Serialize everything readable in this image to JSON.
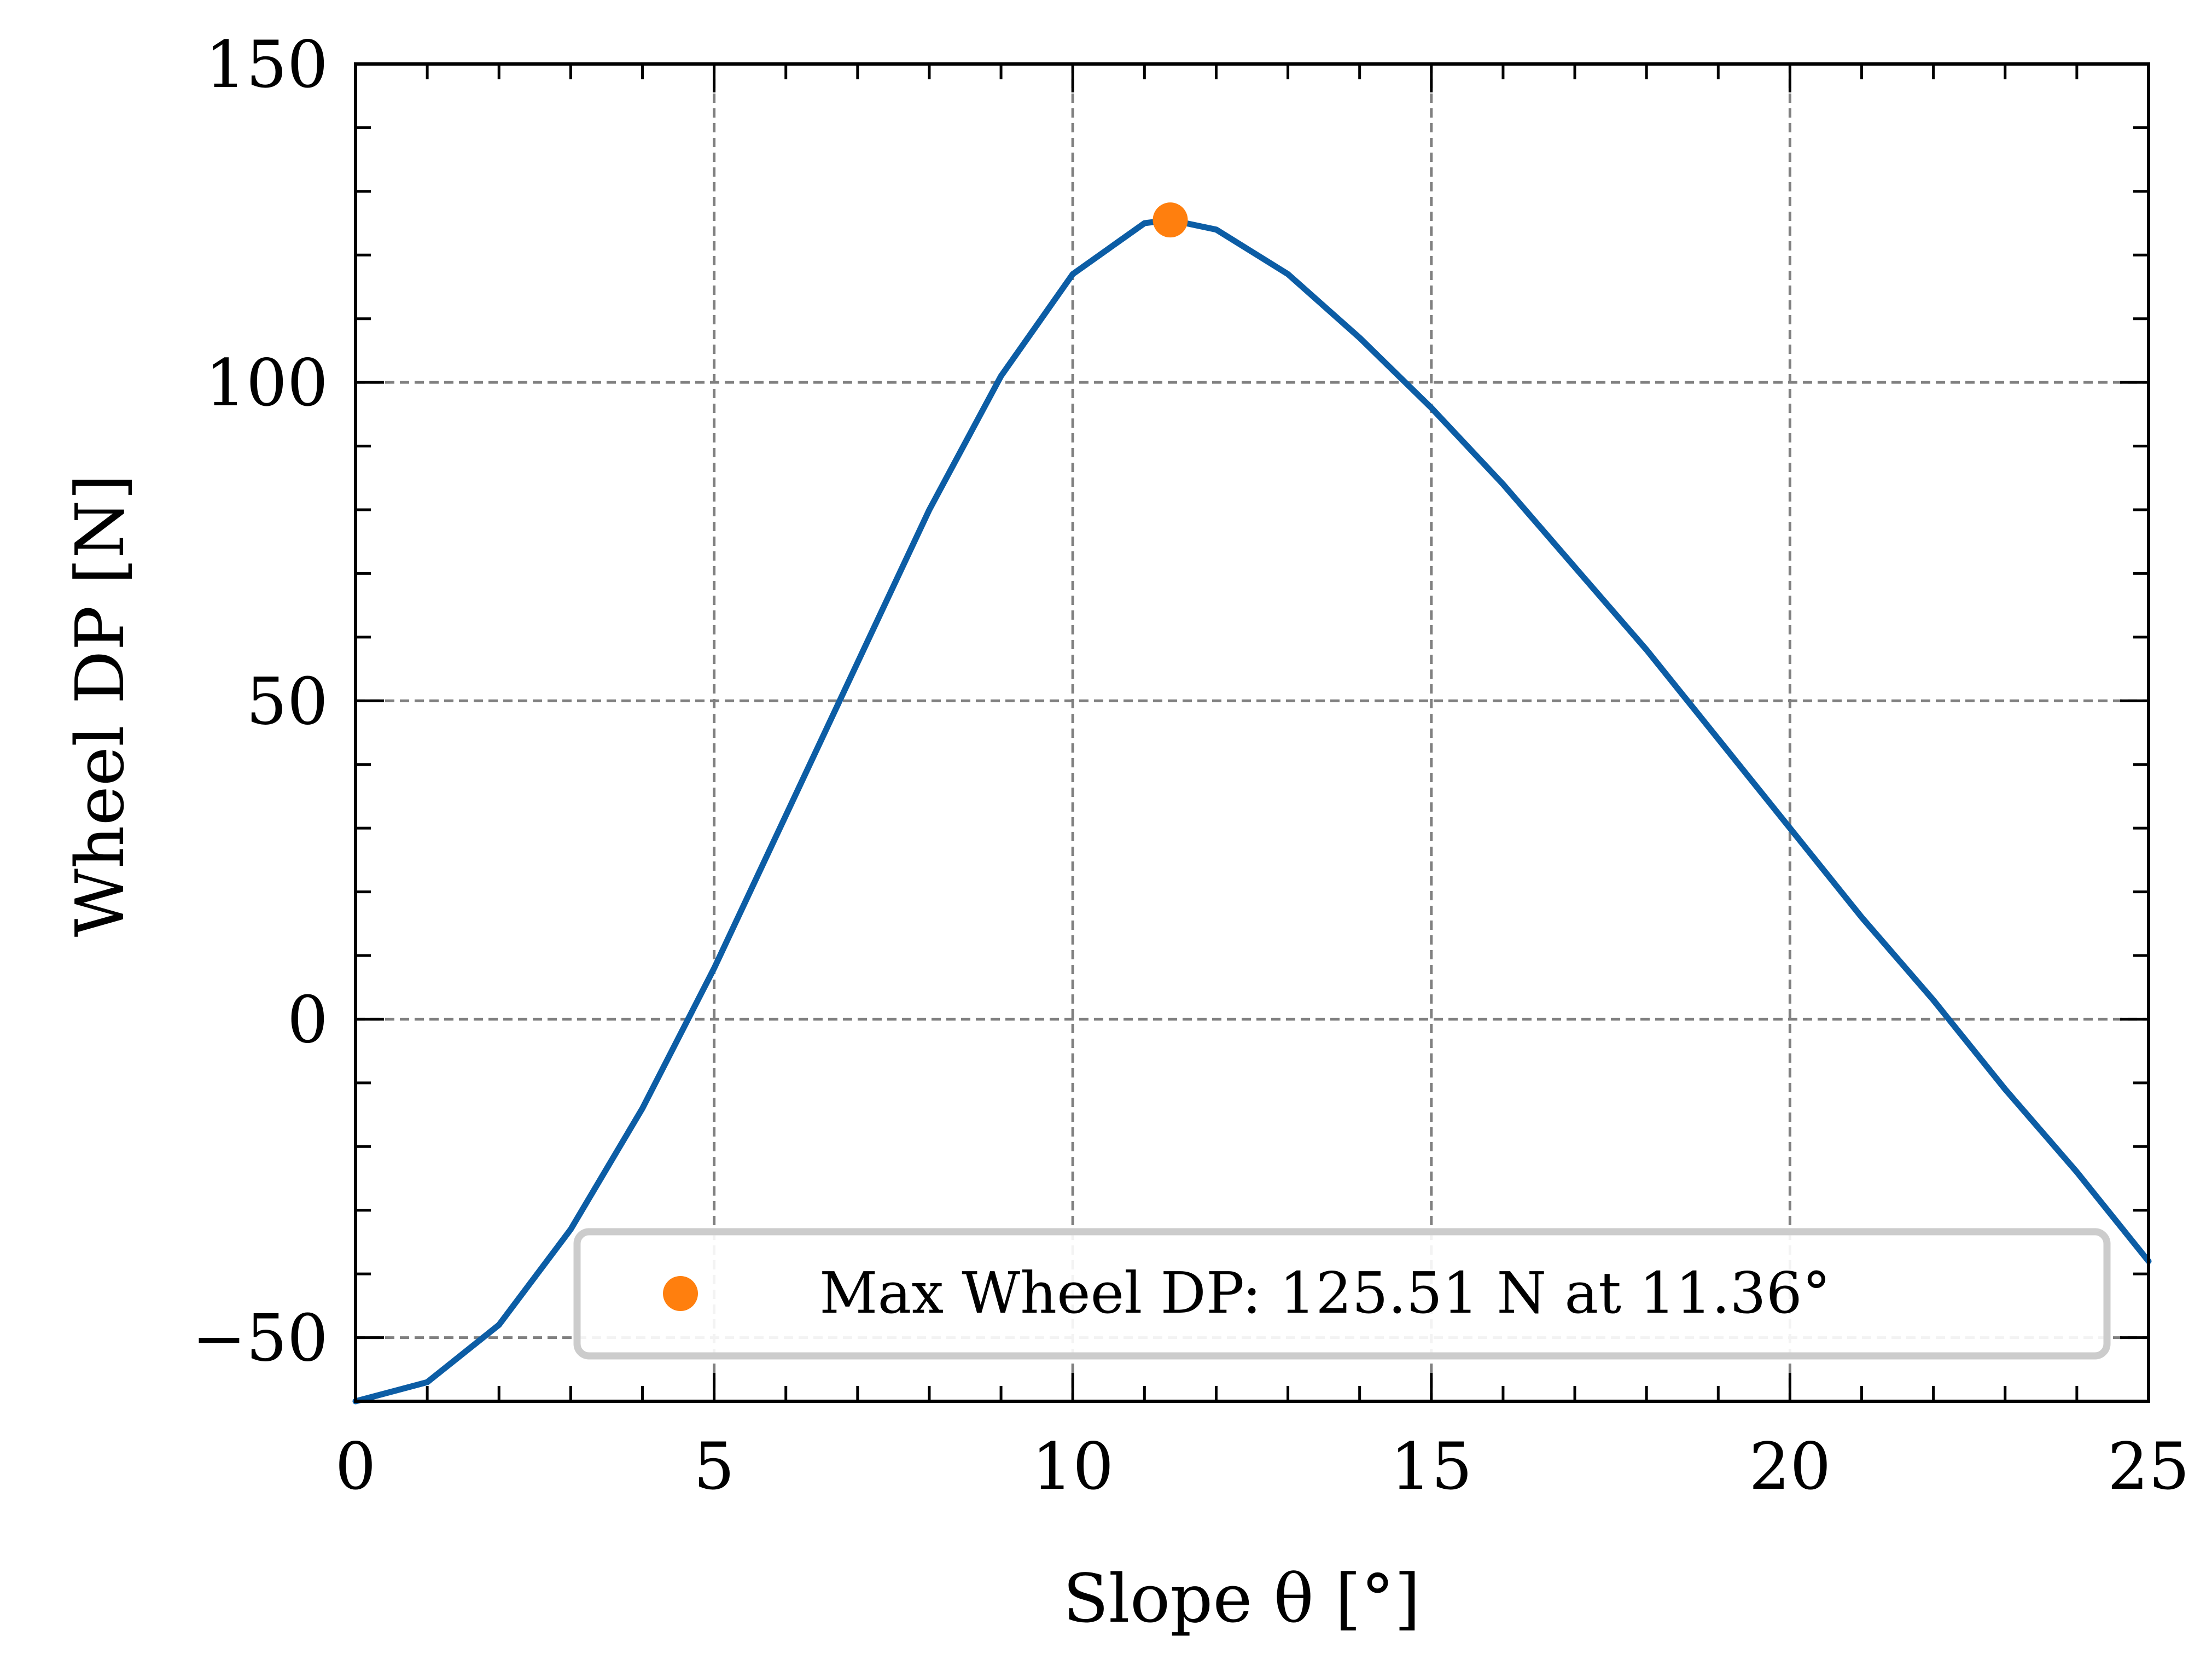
{
  "chart_data": {
    "type": "line",
    "title": "",
    "xlabel": "Slope θ [°]",
    "ylabel": "Wheel DP [N]",
    "xlim": [
      0,
      25
    ],
    "ylim": [
      -60,
      150
    ],
    "x_ticks": [
      "0",
      "5",
      "10",
      "15",
      "20",
      "25"
    ],
    "y_ticks": [
      "−50",
      "0",
      "50",
      "100",
      "150"
    ],
    "grid": true,
    "grid_style": "dashed",
    "legend_position": "lower-right",
    "series": [
      {
        "name": "",
        "color": "#0C5DA5",
        "x": [
          0,
          1,
          2,
          3,
          4,
          5,
          6,
          7,
          8,
          9,
          10,
          11,
          11.36,
          12,
          13,
          14,
          15,
          16,
          17,
          18,
          19,
          20,
          21,
          22,
          23,
          24,
          25
        ],
        "y": [
          -60,
          -57,
          -48,
          -33,
          -14,
          8,
          32,
          56,
          80,
          101,
          117,
          125,
          125.51,
          124,
          117,
          107,
          96,
          84,
          71,
          58,
          44,
          30,
          16,
          3,
          -11,
          -24,
          -38
        ]
      }
    ],
    "markers": [
      {
        "label": "Max Wheel DP: 125.51 N at 11.36°",
        "x": 11.36,
        "y": 125.51,
        "color": "#FF7F0E"
      }
    ]
  }
}
